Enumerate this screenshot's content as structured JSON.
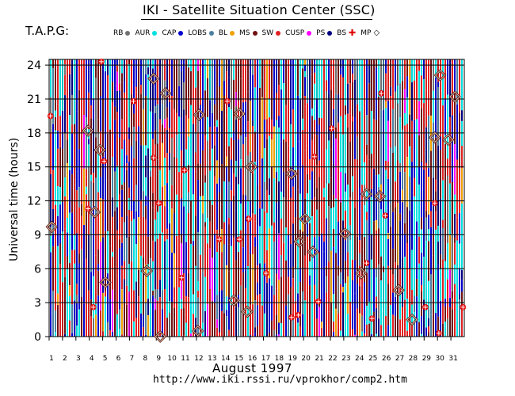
{
  "title": "IKI - Satellite Situation Center (SSC)",
  "tapg_label": "T.A.P.G:",
  "legend": [
    {
      "label": "RB",
      "color": "#707070",
      "symbol": "dot"
    },
    {
      "label": "AUR",
      "color": "#00e0e0",
      "symbol": "dot"
    },
    {
      "label": "CAP",
      "color": "#0000cc",
      "symbol": "dot"
    },
    {
      "label": "LOBS",
      "color": "#4a7fa0",
      "symbol": "dot"
    },
    {
      "label": "BL",
      "color": "#f0a000",
      "symbol": "dot"
    },
    {
      "label": "MS",
      "color": "#701010",
      "symbol": "dot"
    },
    {
      "label": "SW",
      "color": "#e02020",
      "symbol": "dot"
    },
    {
      "label": "CUSP",
      "color": "#ff00ff",
      "symbol": "dot"
    },
    {
      "label": "PS",
      "color": "#000080",
      "symbol": "dot"
    },
    {
      "label": "BS",
      "color": "#e00000",
      "symbol": "plus"
    },
    {
      "label": "MP",
      "color": "#5a1a1a",
      "symbol": "diamond"
    }
  ],
  "axis": {
    "ylabel": "Universal time (hours)",
    "xlabel": "August    1997",
    "y_ticks": [
      "0",
      "3",
      "6",
      "9",
      "12",
      "15",
      "18",
      "21",
      "24"
    ],
    "x_ticks": [
      "1",
      "2",
      "3",
      "4",
      "5",
      "6",
      "7",
      "8",
      "9",
      "10",
      "11",
      "12",
      "13",
      "14",
      "15",
      "16",
      "17",
      "18",
      "19",
      "20",
      "21",
      "22",
      "23",
      "24",
      "25",
      "26",
      "27",
      "28",
      "29",
      "30",
      "31"
    ]
  },
  "url": "http://www.iki.rssi.ru/vprokhor/comp2.htm",
  "chart_data": {
    "type": "scatter",
    "title": "IKI - Satellite Situation Center (SSC)",
    "xlabel": "August 1997",
    "ylabel": "Universal time (hours)",
    "xlim": [
      1,
      32
    ],
    "ylim": [
      0,
      24.5
    ],
    "grid": true,
    "legend_position": "top",
    "series": [
      {
        "name": "BS",
        "color": "#e00000",
        "marker": "plus",
        "points": [
          [
            1.1,
            19.5
          ],
          [
            3.9,
            11.3
          ],
          [
            4.3,
            2.6
          ],
          [
            4.9,
            24.3
          ],
          [
            5.1,
            15.5
          ],
          [
            7.3,
            20.8
          ],
          [
            8.8,
            15.8
          ],
          [
            9.2,
            11.8
          ],
          [
            10.9,
            5.2
          ],
          [
            11.1,
            14.7
          ],
          [
            13.7,
            8.6
          ],
          [
            14.3,
            20.8
          ],
          [
            15.9,
            10.4
          ],
          [
            15.2,
            8.6
          ],
          [
            17.2,
            5.6
          ],
          [
            19.1,
            1.7
          ],
          [
            19.6,
            1.9
          ],
          [
            20.8,
            15.9
          ],
          [
            21.1,
            3.1
          ],
          [
            22.1,
            18.4
          ],
          [
            24.7,
            6.5
          ],
          [
            25.1,
            1.6
          ],
          [
            25.8,
            21.5
          ],
          [
            26.1,
            10.7
          ],
          [
            29.1,
            2.6
          ],
          [
            29.8,
            11.8
          ],
          [
            30.1,
            0.3
          ],
          [
            31.9,
            2.6
          ]
        ]
      },
      {
        "name": "MP",
        "color": "#5a1a1a",
        "marker": "diamond",
        "points": [
          [
            1.2,
            9.7
          ],
          [
            3.9,
            18.2
          ],
          [
            4.4,
            11.0
          ],
          [
            4.8,
            16.5
          ],
          [
            5.2,
            4.8
          ],
          [
            8.3,
            5.8
          ],
          [
            8.8,
            22.8
          ],
          [
            9.3,
            0.0
          ],
          [
            9.7,
            21.5
          ],
          [
            12.1,
            0.5
          ],
          [
            12.2,
            19.6
          ],
          [
            14.8,
            3.2
          ],
          [
            15.2,
            19.7
          ],
          [
            15.8,
            2.2
          ],
          [
            16.1,
            15.0
          ],
          [
            19.1,
            14.4
          ],
          [
            19.7,
            8.4
          ],
          [
            20.1,
            10.4
          ],
          [
            20.7,
            7.5
          ],
          [
            23.1,
            9.1
          ],
          [
            24.3,
            5.6
          ],
          [
            24.7,
            12.6
          ],
          [
            25.7,
            12.4
          ],
          [
            27.1,
            4.1
          ],
          [
            28.1,
            1.5
          ],
          [
            29.8,
            17.6
          ],
          [
            30.2,
            23.1
          ],
          [
            30.8,
            17.4
          ],
          [
            31.3,
            21.2
          ]
        ]
      }
    ],
    "background_colors": [
      "#0000cc",
      "#00e0e0",
      "#e02020",
      "#701010",
      "#4a7fa0",
      "#f0a000",
      "#000080",
      "#ff00ff",
      "#707070"
    ]
  }
}
